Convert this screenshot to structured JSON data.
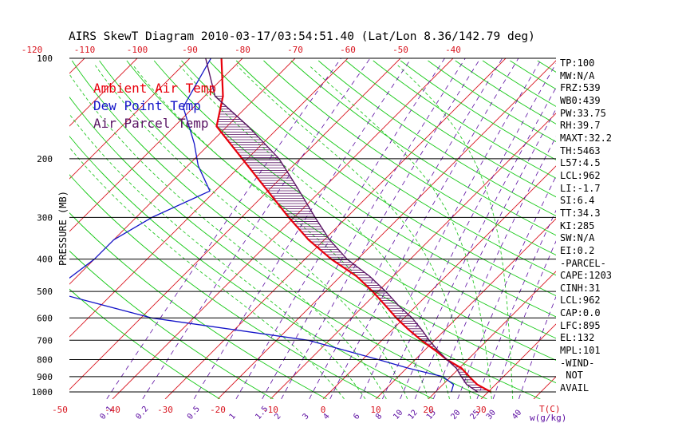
{
  "chart_data": {
    "type": "line",
    "title": "AIRS SkewT Diagram 2010-03-17/03:54:51.40 (Lat/Lon 8.36/142.79 deg)",
    "ylabel": "PRESSURE (MB)",
    "xlabel_right": "T(C)",
    "mixing_ratio_label": "w(g/kg)",
    "y_ticks": [
      "100",
      "200",
      "300",
      "400",
      "500",
      "600",
      "700",
      "800",
      "900",
      "1000"
    ],
    "pressure_levels": [
      100,
      200,
      300,
      400,
      500,
      600,
      700,
      800,
      900,
      1000
    ],
    "y_range": [
      100,
      1050
    ],
    "top_temp_ticks": [
      "-120",
      "-110",
      "-100",
      "-90",
      "-80",
      "-70",
      "-60",
      "-50",
      "-40"
    ],
    "top_temp_values": [
      -120,
      -110,
      -100,
      -90,
      -80,
      -70,
      -60,
      -50,
      -40
    ],
    "bottom_temp_ticks": [
      "-50",
      "-40",
      "-30",
      "-20",
      "-10",
      "0",
      "10",
      "20",
      "30"
    ],
    "bottom_temp_values": [
      -50,
      -40,
      -30,
      -20,
      -10,
      0,
      10,
      20,
      30
    ],
    "mixing_ratio_ticks": [
      "0.1",
      "0.2",
      "0.5",
      "1",
      "1.5",
      "2",
      "3",
      "4",
      "6",
      "8",
      "10",
      "12",
      "15",
      "20",
      "25",
      "30",
      "40"
    ],
    "mixing_ratio_values": [
      0.1,
      0.2,
      0.5,
      1,
      1.5,
      2,
      3,
      4,
      6,
      8,
      10,
      12,
      15,
      20,
      25,
      30,
      40
    ],
    "legend": [
      "Ambient Air Temp",
      "Dew Point Temp",
      "Air Parcel Temp"
    ],
    "colors": {
      "ambient": "#e8000b",
      "dewpoint": "#1414c8",
      "parcel": "#5a1464",
      "isotherm": "#d8141e",
      "dry_adiabat": "#14c814",
      "moist_adiabat": "#28c828",
      "mixing_ratio": "#5a0aa0",
      "isobar": "#000000"
    },
    "series": [
      {
        "name": "Ambient Air Temp",
        "points": [
          [
            100,
            -84
          ],
          [
            130,
            -76.5
          ],
          [
            160,
            -72
          ],
          [
            200,
            -61
          ],
          [
            250,
            -50
          ],
          [
            300,
            -41
          ],
          [
            350,
            -33
          ],
          [
            400,
            -25
          ],
          [
            450,
            -17
          ],
          [
            500,
            -11
          ],
          [
            550,
            -6
          ],
          [
            600,
            -1.5
          ],
          [
            650,
            3
          ],
          [
            700,
            7.5
          ],
          [
            750,
            12
          ],
          [
            800,
            16
          ],
          [
            850,
            20.5
          ],
          [
            900,
            23.5
          ],
          [
            950,
            26.5
          ],
          [
            1000,
            30.5
          ]
        ]
      },
      {
        "name": "Dew Point Temp",
        "points": [
          [
            100,
            -86
          ],
          [
            140,
            -82
          ],
          [
            180,
            -73
          ],
          [
            210,
            -68
          ],
          [
            250,
            -61
          ],
          [
            300,
            -67
          ],
          [
            350,
            -70
          ],
          [
            400,
            -70
          ],
          [
            500,
            -72
          ],
          [
            600,
            -48
          ],
          [
            700,
            -14
          ],
          [
            800,
            3
          ],
          [
            850,
            10.5
          ],
          [
            900,
            18.5
          ],
          [
            950,
            22
          ],
          [
            1000,
            23
          ]
        ]
      },
      {
        "name": "Air Parcel Temp",
        "points": [
          [
            100,
            -87
          ],
          [
            130,
            -78
          ],
          [
            160,
            -66
          ],
          [
            200,
            -54
          ],
          [
            250,
            -44
          ],
          [
            300,
            -36
          ],
          [
            350,
            -29
          ],
          [
            400,
            -22
          ],
          [
            450,
            -14.5
          ],
          [
            500,
            -8.5
          ],
          [
            550,
            -3.5
          ],
          [
            600,
            1.5
          ],
          [
            650,
            5.5
          ],
          [
            700,
            9
          ],
          [
            750,
            12.5
          ],
          [
            800,
            16
          ],
          [
            850,
            19.5
          ],
          [
            900,
            22
          ],
          [
            950,
            24.5
          ],
          [
            1000,
            28
          ]
        ]
      }
    ]
  },
  "side_panel": [
    "TP:100",
    "MW:N/A",
    "FRZ:539",
    "WB0:439",
    "PW:33.75",
    "RH:39.7",
    "MAXT:32.2",
    "TH:5463",
    "L57:4.5",
    "LCL:962",
    "LI:-1.7",
    "SI:6.4",
    "TT:34.3",
    "KI:285",
    "SW:N/A",
    "EI:0.2",
    "-PARCEL-",
    "CAPE:1203",
    "CINH:31",
    "LCL:962",
    "CAP:0.0",
    "LFC:895",
    "EL:132",
    "MPL:101",
    "-WIND-",
    " NOT",
    "AVAIL"
  ]
}
